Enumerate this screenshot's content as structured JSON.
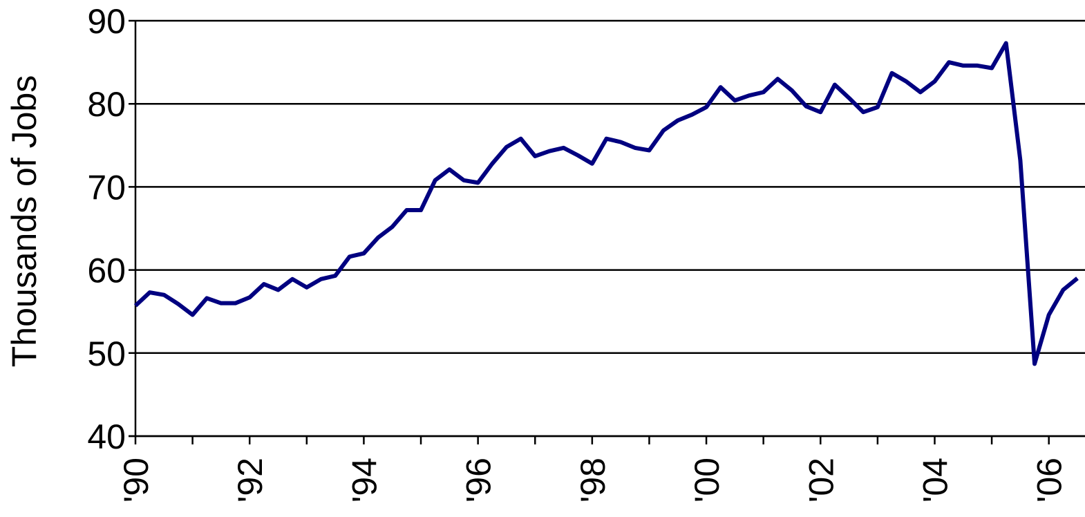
{
  "chart_data": {
    "type": "line",
    "y_label": "Thousands of Jobs",
    "x": [
      1990,
      1990.25,
      1990.5,
      1990.75,
      1991,
      1991.25,
      1991.5,
      1991.75,
      1992,
      1992.25,
      1992.5,
      1992.75,
      1993,
      1993.25,
      1993.5,
      1993.75,
      1994,
      1994.25,
      1994.5,
      1994.75,
      1995,
      1995.25,
      1995.5,
      1995.75,
      1996,
      1996.25,
      1996.5,
      1996.75,
      1997,
      1997.25,
      1997.5,
      1997.75,
      1998,
      1998.25,
      1998.5,
      1998.75,
      1999,
      1999.25,
      1999.5,
      1999.75,
      2000,
      2000.25,
      2000.5,
      2000.75,
      2001,
      2001.25,
      2001.5,
      2001.75,
      2002,
      2002.25,
      2002.5,
      2002.75,
      2003,
      2003.25,
      2003.5,
      2003.75,
      2004,
      2004.25,
      2004.5,
      2004.75,
      2005,
      2005.25,
      2005.5,
      2005.75,
      2006,
      2006.25,
      2006.5
    ],
    "series": [
      {
        "color": "#000080",
        "values": [
          55.7,
          57.3,
          57,
          55.9,
          54.6,
          56.6,
          56,
          56,
          56.7,
          58.3,
          57.6,
          58.9,
          57.9,
          58.9,
          59.3,
          61.6,
          62,
          63.9,
          65.2,
          67.2,
          67.2,
          70.8,
          72.1,
          70.8,
          70.5,
          72.8,
          74.8,
          75.8,
          73.7,
          74.3,
          74.7,
          73.8,
          72.8,
          75.8,
          75.4,
          74.7,
          74.4,
          76.8,
          78,
          78.7,
          79.6,
          82,
          80.4,
          81,
          81.4,
          83,
          81.6,
          79.7,
          79,
          82.3,
          80.7,
          79,
          79.6,
          83.7,
          82.7,
          81.4,
          82.7,
          85,
          84.6,
          84.6,
          84.3,
          87.3,
          73.2,
          48.7,
          54.6,
          57.6,
          59
        ]
      }
    ],
    "xlim": [
      1990,
      2006.5
    ],
    "xticks": [
      {
        "value": 1990,
        "label": "'90"
      },
      {
        "value": 1992,
        "label": "'92"
      },
      {
        "value": 1994,
        "label": "'94"
      },
      {
        "value": 1996,
        "label": "'96"
      },
      {
        "value": 1998,
        "label": "'98"
      },
      {
        "value": 2000,
        "label": "'00"
      },
      {
        "value": 2002,
        "label": "'02"
      },
      {
        "value": 2004,
        "label": "'04"
      },
      {
        "value": 2006,
        "label": "'06"
      }
    ],
    "xticks_minor": [
      1991,
      1993,
      1995,
      1997,
      1999,
      2001,
      2003,
      2005
    ],
    "ylim": [
      40,
      90
    ],
    "yticks": [
      40,
      50,
      60,
      70,
      80,
      90
    ],
    "grid": true
  }
}
